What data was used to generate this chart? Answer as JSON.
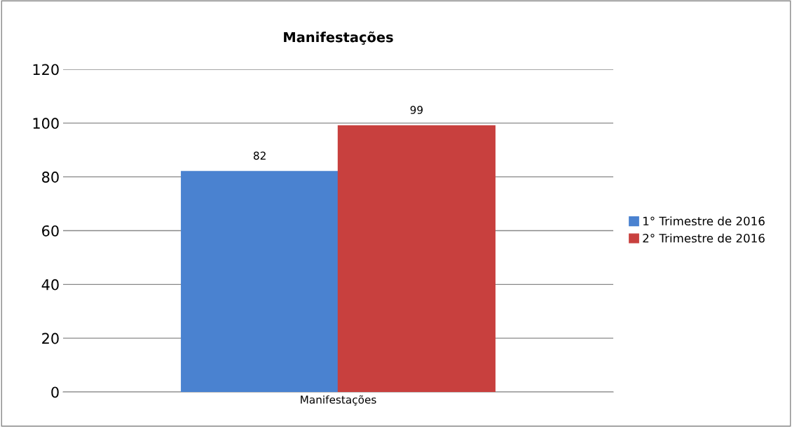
{
  "chart_data": {
    "type": "bar",
    "title": "Manifestações",
    "categories": [
      "Manifestações"
    ],
    "series": [
      {
        "name": "1° Trimestre de 2016",
        "color": "#4a82d0",
        "values": [
          82
        ]
      },
      {
        "name": "2° Trimestre de 2016",
        "color": "#c8403e",
        "values": [
          99
        ]
      }
    ],
    "ylim": [
      0,
      120
    ],
    "yticks": [
      0,
      20,
      40,
      60,
      80,
      100,
      120
    ],
    "grid": "y",
    "legend": "right",
    "data_labels": true
  }
}
